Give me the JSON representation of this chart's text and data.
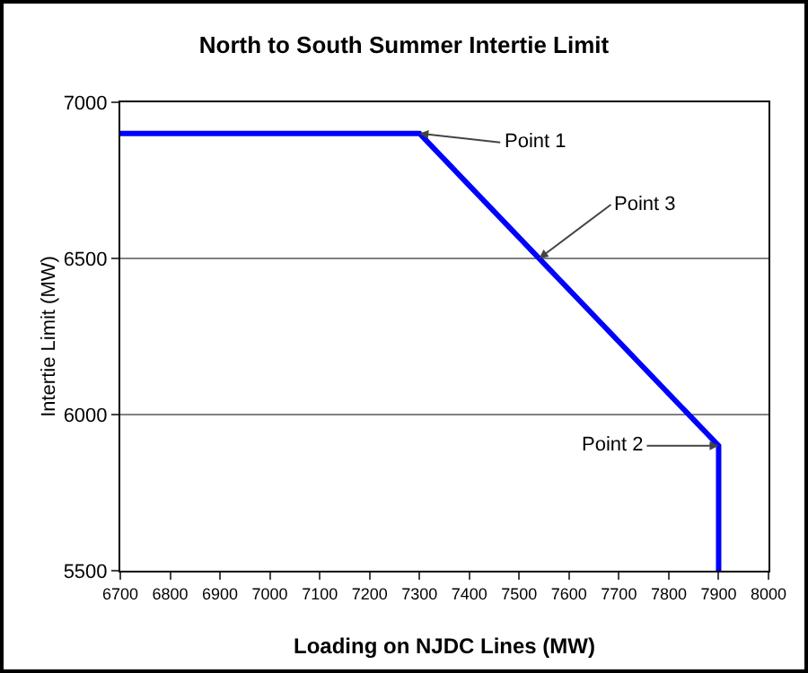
{
  "chart_data": {
    "type": "line",
    "title": "North to South Summer Intertie Limit",
    "xlabel": "Loading on NJDC Lines (MW)",
    "ylabel": "Intertie Limit (MW)",
    "x": [
      6700,
      7300,
      7900,
      7900
    ],
    "series": [
      {
        "color": "#0000ff",
        "values": [
          6900,
          6900,
          5900,
          5500
        ]
      }
    ],
    "xlim": [
      6700,
      8000
    ],
    "xticks": [
      6700,
      6800,
      6900,
      7000,
      7100,
      7200,
      7300,
      7400,
      7500,
      7600,
      7700,
      7800,
      7900,
      8000
    ],
    "ylim": [
      5500,
      7000
    ],
    "yticks": [
      5500,
      6000,
      6500,
      7000
    ],
    "grid": "y",
    "marker": "none",
    "line_style": "solid",
    "annotations": [
      {
        "text": "Point 1",
        "x": 7300,
        "y": 6900
      },
      {
        "text": "Point 3",
        "x": 7540,
        "y": 6500
      },
      {
        "text": "Point 2",
        "x": 7900,
        "y": 5900
      }
    ]
  }
}
